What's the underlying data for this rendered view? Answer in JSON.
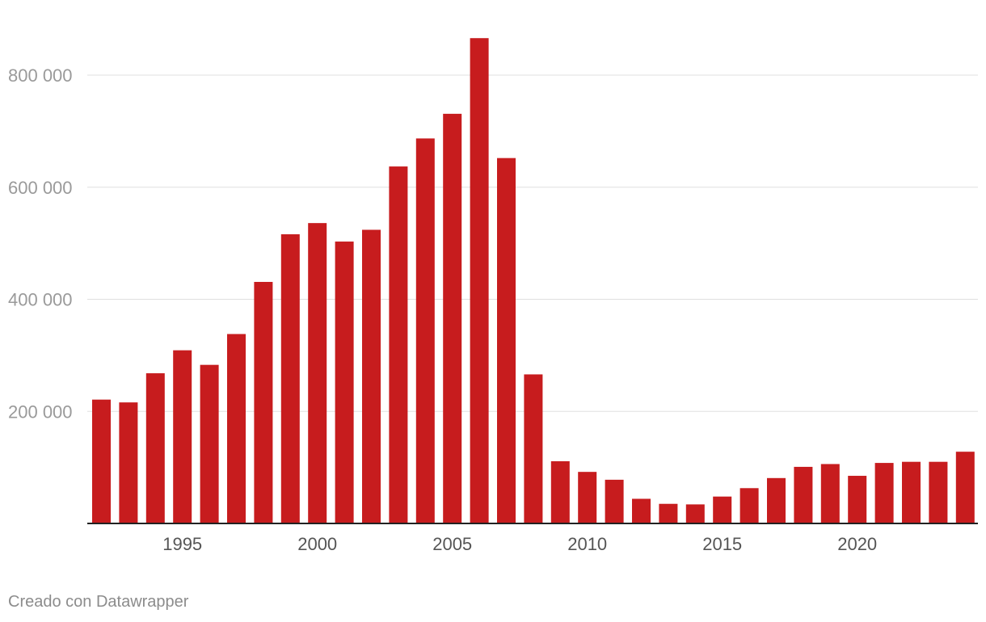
{
  "chart_data": {
    "type": "bar",
    "title": "",
    "xlabel": "",
    "ylabel": "",
    "categories": [
      1992,
      1993,
      1994,
      1995,
      1996,
      1997,
      1998,
      1999,
      2000,
      2001,
      2002,
      2003,
      2004,
      2005,
      2006,
      2007,
      2008,
      2009,
      2010,
      2011,
      2012,
      2013,
      2014,
      2015,
      2016,
      2017,
      2018,
      2019,
      2020,
      2021,
      2022,
      2023,
      2024
    ],
    "values": [
      221000,
      216000,
      268000,
      309000,
      283000,
      338000,
      431000,
      516000,
      536000,
      503000,
      524000,
      637000,
      687000,
      731000,
      866000,
      652000,
      266000,
      111000,
      92000,
      78000,
      44000,
      35000,
      34000,
      48000,
      63000,
      81000,
      101000,
      106000,
      85000,
      108000,
      110000,
      110000,
      128000
    ],
    "ylim": [
      0,
      900000
    ],
    "y_ticks": [
      200000,
      400000,
      600000,
      800000
    ],
    "y_tick_labels": [
      "200 000",
      "400 000",
      "600 000",
      "800 000"
    ],
    "x_tick_labels": [
      "1995",
      "2000",
      "2005",
      "2010",
      "2015",
      "2020"
    ],
    "grid": true,
    "legend": "none",
    "bar_color": "#c71c1e"
  },
  "credit": "Creado con Datawrapper"
}
